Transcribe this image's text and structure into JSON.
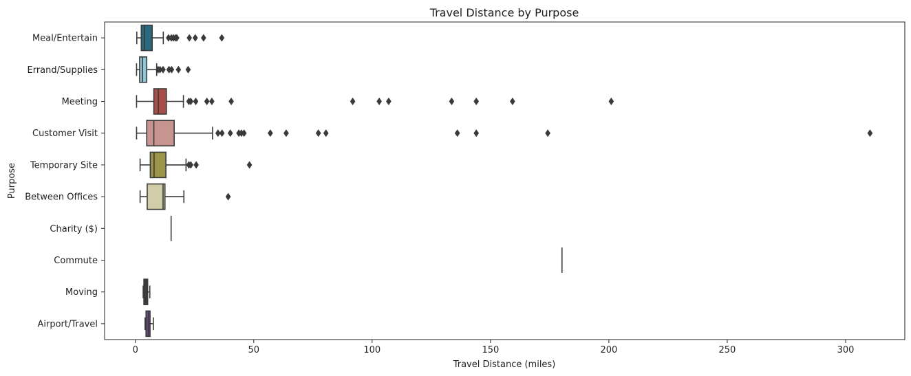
{
  "chart_data": {
    "type": "box",
    "orientation": "horizontal",
    "title": "Travel Distance by Purpose",
    "xlabel": "Travel Distance (miles)",
    "ylabel": "Purpose",
    "xlim": [
      -13,
      325
    ],
    "xticks": [
      0,
      50,
      100,
      150,
      200,
      250,
      300
    ],
    "xtick_labels": [
      "0",
      "50",
      "100",
      "150",
      "200",
      "250",
      "300"
    ],
    "grid": false,
    "legend": "none",
    "categories": [
      "Meal/Entertain",
      "Errand/Supplies",
      "Meeting",
      "Customer Visit",
      "Temporary Site",
      "Between Offices",
      "Charity ($)",
      "Commute",
      "Moving",
      "Airport/Travel"
    ],
    "boxes": [
      {
        "category": "Meal/Entertain",
        "color": "#2a6a7e",
        "whisker_low": 0.6,
        "q1": 2.5,
        "median": 3.8,
        "q3": 7.1,
        "whisker_high": 11.8,
        "outliers": [
          14.0,
          15.2,
          16.1,
          17.0,
          17.5,
          22.8,
          25.3,
          28.8,
          36.5
        ]
      },
      {
        "category": "Errand/Supplies",
        "color": "#90c8d6",
        "whisker_low": 0.5,
        "q1": 1.8,
        "median": 3.0,
        "q3": 4.8,
        "whisker_high": 9.0,
        "outliers": [
          9.6,
          10.4,
          11.7,
          14.2,
          15.3,
          18.2,
          22.3
        ]
      },
      {
        "category": "Meeting",
        "color": "#a64e47",
        "whisker_low": 0.5,
        "q1": 7.8,
        "median": 9.7,
        "q3": 13.1,
        "whisker_high": 20.3,
        "outliers": [
          22.6,
          23.4,
          25.5,
          30.2,
          32.3,
          40.5,
          91.8,
          103.0,
          107.0,
          133.6,
          144.0,
          159.3,
          201.0
        ]
      },
      {
        "category": "Customer Visit",
        "color": "#c7948f",
        "whisker_low": 0.5,
        "q1": 4.8,
        "median": 7.8,
        "q3": 16.4,
        "whisker_high": 32.6,
        "outliers": [
          34.9,
          36.6,
          40.1,
          43.7,
          44.8,
          45.9,
          57.0,
          63.7,
          77.3,
          80.5,
          136.0,
          144.0,
          174.2,
          310.3
        ]
      },
      {
        "category": "Temporary Site",
        "color": "#9b9449",
        "whisker_low": 2.0,
        "q1": 6.3,
        "median": 7.9,
        "q3": 12.9,
        "whisker_high": 21.4,
        "outliers": [
          22.6,
          23.4,
          25.7,
          48.2
        ]
      },
      {
        "category": "Between Offices",
        "color": "#d1cda8",
        "whisker_low": 2.0,
        "q1": 5.0,
        "median": 11.7,
        "q3": 12.5,
        "whisker_high": 20.5,
        "outliers": [
          39.2
        ]
      },
      {
        "category": "Charity ($)",
        "color": "#333333",
        "whisker_low": 15.1,
        "q1": 15.1,
        "median": 15.1,
        "q3": 15.1,
        "whisker_high": 15.1,
        "outliers": []
      },
      {
        "category": "Commute",
        "color": "#333333",
        "whisker_low": 180.2,
        "q1": 180.2,
        "median": 180.2,
        "q3": 180.2,
        "whisker_high": 180.2,
        "outliers": []
      },
      {
        "category": "Moving",
        "color": "#3a3a3a",
        "whisker_low": 3.3,
        "q1": 3.6,
        "median": 4.5,
        "q3": 5.2,
        "whisker_high": 6.1,
        "outliers": []
      },
      {
        "category": "Airport/Travel",
        "color": "#6a4a85",
        "whisker_low": 4.1,
        "q1": 4.5,
        "median": 5.5,
        "q3": 6.2,
        "whisker_high": 7.6,
        "outliers": []
      }
    ]
  }
}
